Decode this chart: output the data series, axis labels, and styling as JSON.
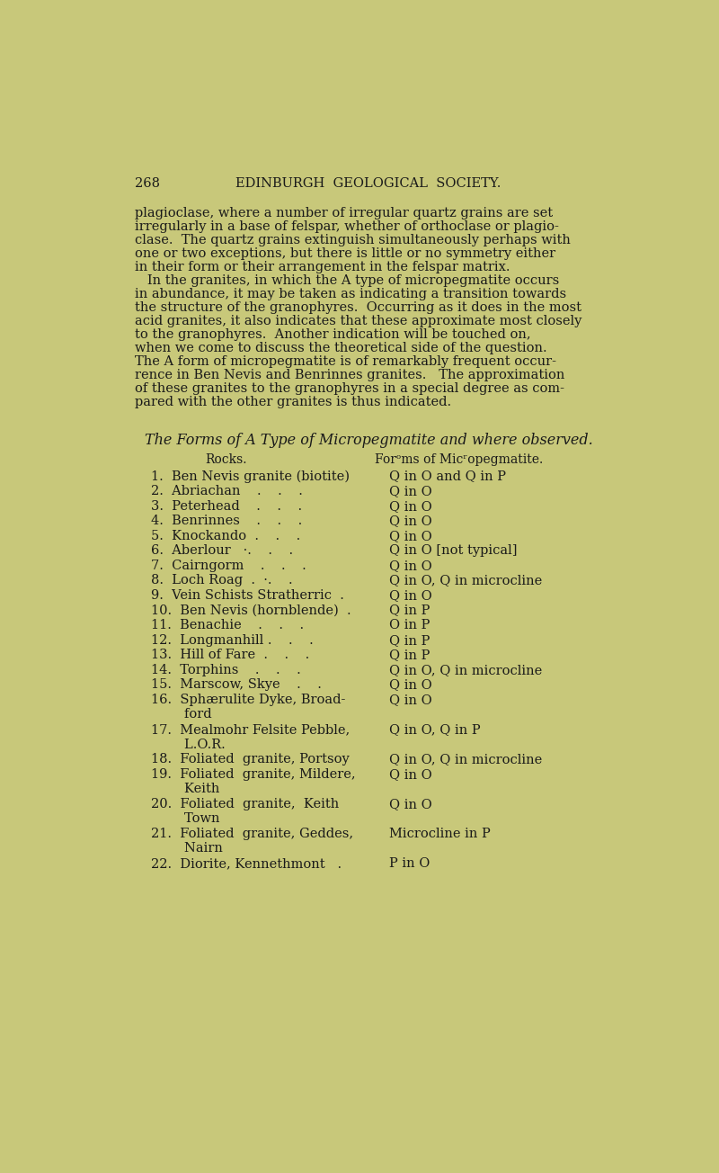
{
  "bg_color": "#c8c87a",
  "text_color": "#1a1a1a",
  "page_num": "268",
  "header": "EDINBURGH  GEOLOGICAL  SOCIETY.",
  "body_text": [
    "plagioclase, where a number of irregular quartz grains are set",
    "irregularly in a base of felspar, whether of orthoclase or plagio-",
    "clase.  The quartz grains extinguish simultaneously perhaps with",
    "one or two exceptions, but there is little or no symmetry either",
    "in their form or their arrangement in the felspar matrix.",
    "   In the granites, in which the A type of micropegmatite occurs",
    "in abundance, it may be taken as indicating a transition towards",
    "the structure of the granophyres.  Occurring as it does in the most",
    "acid granites, it also indicates that these approximate most closely",
    "to the granophyres.  Another indication will be touched on,",
    "when we come to discuss the theoretical side of the question.",
    "The A form of micropegmatite is of remarkably frequent occur-",
    "rence in Ben Nevis and Benrinnes granites.   The approximation",
    "of these granites to the granophyres in a special degree as com-",
    "pared with the other granites is thus indicated."
  ],
  "table_title": "The Forms of A Type of Micropegmatite and where observed.",
  "col1_header": "Rocks.",
  "col2_header": "Forᵒms of Micʳopegmatite.",
  "rows": [
    [
      "1.  Ben Nevis granite (biotite)",
      "Q in O and Q in P"
    ],
    [
      "2.  Abriachan    .    .    .",
      "Q in O"
    ],
    [
      "3.  Peterhead    .    .    .",
      "Q in O"
    ],
    [
      "4.  Benrinnes    .    .    .",
      "Q in O"
    ],
    [
      "5.  Knockando  .    .    .",
      "Q in O"
    ],
    [
      "6.  Aberlour   ·.    .    .",
      "Q in O [not typical]"
    ],
    [
      "7.  Cairngorm    .    .    .",
      "Q in O"
    ],
    [
      "8.  Loch Roag  .  ·.    .",
      "Q in O, Q in microcline"
    ],
    [
      "9.  Vein Schists Stratherric  .",
      "Q in O"
    ],
    [
      "10.  Ben Nevis (hornblende)  .",
      "Q in P"
    ],
    [
      "11.  Benachie    .    .    .",
      "O in P"
    ],
    [
      "12.  Longmanhill .    .    .",
      "Q in P"
    ],
    [
      "13.  Hill of Fare  .    .    .",
      "Q in P"
    ],
    [
      "14.  Torphins    .    .    .",
      "Q in O, Q in microcline"
    ],
    [
      "15.  Marscow, Skye    .    .",
      "Q in O"
    ],
    [
      "16.  Sphærulite Dyke, Broad-",
      "Q in O"
    ],
    [
      "        ford",
      ""
    ],
    [
      "17.  Mealmohr Felsite Pebble,",
      "Q in O, Q in P"
    ],
    [
      "        L.O.R.",
      ""
    ],
    [
      "18.  Foliated  granite, Portsoy",
      "Q in O, Q in microcline"
    ],
    [
      "19.  Foliated  granite, Mildere,",
      "Q in O"
    ],
    [
      "        Keith",
      ""
    ],
    [
      "20.  Foliated  granite,  Keith",
      "Q in O"
    ],
    [
      "        Town",
      ""
    ],
    [
      "21.  Foliated  granite, Geddes,",
      "Microcline in P"
    ],
    [
      "        Nairn",
      ""
    ],
    [
      "22.  Diorite, Kennethmont   .",
      "P in O"
    ]
  ],
  "font_size_header": 10.5,
  "font_size_body": 10.5,
  "font_size_page": 10.5,
  "font_size_table_title": 11.5,
  "font_size_table_header": 10.0,
  "font_size_table_row": 10.5
}
